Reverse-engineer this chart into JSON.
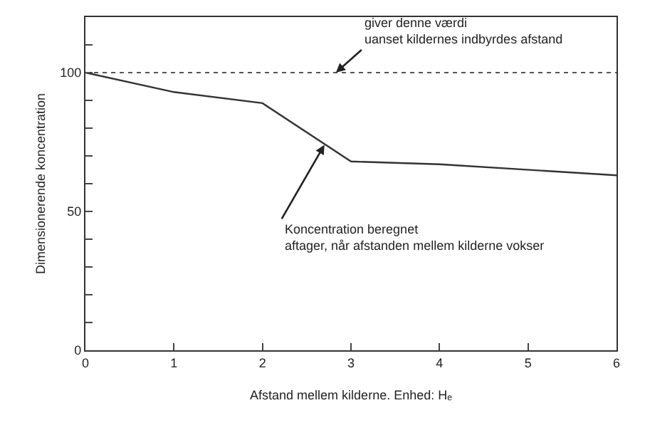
{
  "chart_data": {
    "type": "line",
    "xlabel": "Afstand mellem kilderne. Enhed: Hₑ",
    "ylabel": "Dimensionerende koncentration",
    "x": [
      0,
      1,
      2,
      3,
      4,
      6
    ],
    "series": [
      {
        "color": "#333333",
        "values": [
          100,
          93,
          89,
          68,
          67,
          63
        ]
      }
    ],
    "xlim": [
      0,
      6
    ],
    "xticks": [
      0,
      1,
      2,
      3,
      4,
      5,
      6
    ],
    "ylim": [
      0,
      120
    ],
    "yticks": [
      0,
      {
        "value": 10,
        "label": null
      },
      {
        "value": 20,
        "label": null
      },
      {
        "value": 30,
        "label": null
      },
      {
        "value": 40,
        "label": null
      },
      50,
      {
        "value": 60,
        "label": null
      },
      {
        "value": 70,
        "label": null
      },
      {
        "value": 80,
        "label": null
      },
      {
        "value": 90,
        "label": null
      },
      100,
      {
        "value": 110,
        "label": null
      }
    ],
    "ref_lines": [
      {
        "axis": "y",
        "value": 100,
        "color": "#555555",
        "line_style": "dotted"
      }
    ],
    "annotations": [
      {
        "text": "giver denne værdi\nuanset kildernes indbyrdes afstand",
        "x": 2.83,
        "y": 100
      },
      {
        "text": "Koncentration beregnet\naftager, når afstanden mellem kilderne vokser",
        "x": 2.7,
        "y": 74
      }
    ],
    "marker": "none",
    "line_style": "solid"
  }
}
